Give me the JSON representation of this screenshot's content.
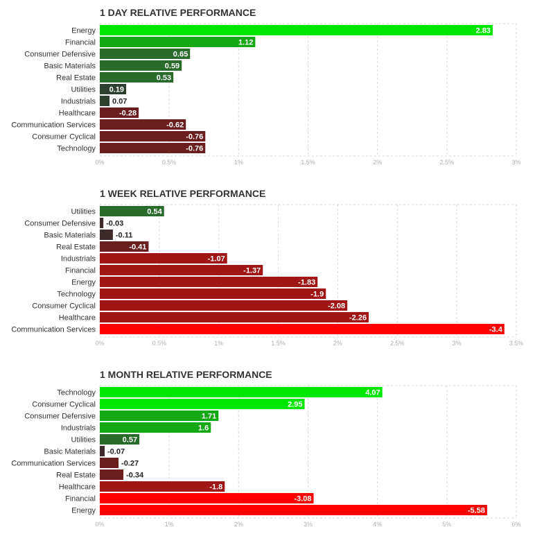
{
  "chart_data": [
    {
      "type": "bar",
      "orientation": "horizontal",
      "title": "1 DAY RELATIVE PERFORMANCE",
      "categories": [
        "Energy",
        "Financial",
        "Consumer Defensive",
        "Basic Materials",
        "Real Estate",
        "Utilities",
        "Industrials",
        "Healthcare",
        "Communication Services",
        "Consumer Cyclical",
        "Technology"
      ],
      "values": [
        2.83,
        1.12,
        0.65,
        0.59,
        0.53,
        0.19,
        0.07,
        -0.28,
        -0.62,
        -0.76,
        -0.76
      ],
      "value_labels": [
        "2.83",
        "1.12",
        "0.65",
        "0.59",
        "0.53",
        "0.19",
        "0.07",
        "-0.28",
        "-0.62",
        "-0.76",
        "-0.76"
      ],
      "xlim": [
        0,
        3
      ],
      "xticks": [
        "0%",
        "0.5%",
        "1%",
        "1.5%",
        "2%",
        "2.5%",
        "3%"
      ],
      "bar_length": "absolute value",
      "grid": true
    },
    {
      "type": "bar",
      "orientation": "horizontal",
      "title": "1 WEEK RELATIVE PERFORMANCE",
      "categories": [
        "Utilities",
        "Consumer Defensive",
        "Basic Materials",
        "Real Estate",
        "Industrials",
        "Financial",
        "Energy",
        "Technology",
        "Consumer Cyclical",
        "Healthcare",
        "Communication Services"
      ],
      "values": [
        0.54,
        -0.03,
        -0.11,
        -0.41,
        -1.07,
        -1.37,
        -1.83,
        -1.9,
        -2.08,
        -2.26,
        -3.4
      ],
      "value_labels": [
        "0.54",
        "-0.03",
        "-0.11",
        "-0.41",
        "-1.07",
        "-1.37",
        "-1.83",
        "-1.9",
        "-2.08",
        "-2.26",
        "-3.4"
      ],
      "xlim": [
        0,
        3.5
      ],
      "xticks": [
        "0%",
        "0.5%",
        "1%",
        "1.5%",
        "2%",
        "2.5%",
        "3%",
        "3.5%"
      ],
      "bar_length": "absolute value",
      "grid": true
    },
    {
      "type": "bar",
      "orientation": "horizontal",
      "title": "1 MONTH RELATIVE PERFORMANCE",
      "categories": [
        "Technology",
        "Consumer Cyclical",
        "Consumer Defensive",
        "Industrials",
        "Utilities",
        "Basic Materials",
        "Communication Services",
        "Real Estate",
        "Healthcare",
        "Financial",
        "Energy"
      ],
      "values": [
        4.07,
        2.95,
        1.71,
        1.6,
        0.57,
        -0.07,
        -0.27,
        -0.34,
        -1.8,
        -3.08,
        -5.58
      ],
      "value_labels": [
        "4.07",
        "2.95",
        "1.71",
        "1.6",
        "0.57",
        "-0.07",
        "-0.27",
        "-0.34",
        "-1.8",
        "-3.08",
        "-5.58"
      ],
      "xlim": [
        0,
        6
      ],
      "xticks": [
        "0%",
        "1%",
        "2%",
        "3%",
        "4%",
        "5%",
        "6%"
      ],
      "bar_length": "absolute value",
      "grid": true
    }
  ],
  "colors": {
    "positive_strong": "#00e600",
    "positive_mid": "#14a814",
    "positive_low": "#2a6a2a",
    "neutral_pos": "#2f3f2f",
    "neutral_neg": "#3d2a2a",
    "negative_low": "#6b1e1e",
    "negative_mid": "#a01616",
    "negative_strong": "#ff0000",
    "grid": "#d9d9d9",
    "tick_text": "#b0b0b0",
    "title_text": "#333333"
  }
}
